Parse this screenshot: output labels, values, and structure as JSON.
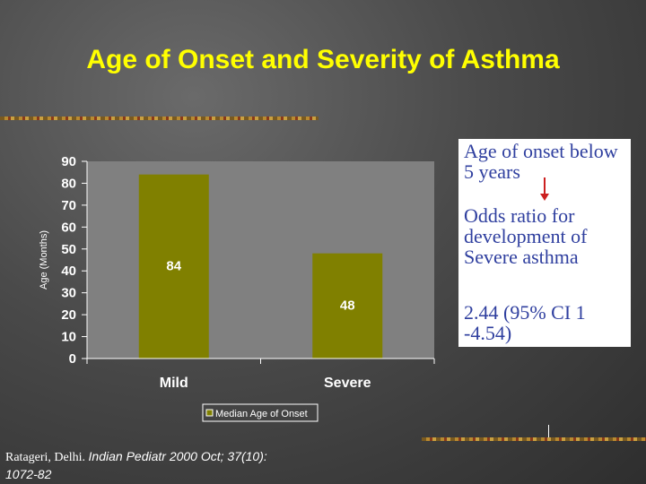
{
  "slide": {
    "title": "Age of Onset and Severity of Asthma"
  },
  "info_box": {
    "line1": "Age of onset below 5 years",
    "line2": "Odds ratio for development of Severe asthma",
    "line3": "2.44 (95% CI 1 -4.54)"
  },
  "citation": {
    "source": "Ratageri, Delhi. ",
    "journal": "Indian Pediatr 2000 Oct; 37(10): 1072-82"
  },
  "colors": {
    "title": "#ffff00",
    "bar": "#808000",
    "plot_area": "#808080",
    "info_text": "#2f3f9f",
    "arrow": "#cc2020"
  },
  "chart_data": {
    "type": "bar",
    "categories": [
      "Mild",
      "Severe"
    ],
    "series": [
      {
        "name": "Median Age of Onset",
        "values": [
          84,
          48
        ]
      }
    ],
    "data_labels": [
      "84",
      "48"
    ],
    "ylabel": "Age (Months)",
    "xlabel": "",
    "ylim": [
      0,
      90
    ],
    "yticks": [
      0,
      10,
      20,
      30,
      40,
      50,
      60,
      70,
      80,
      90
    ],
    "legend": "bottom",
    "grid": false
  }
}
